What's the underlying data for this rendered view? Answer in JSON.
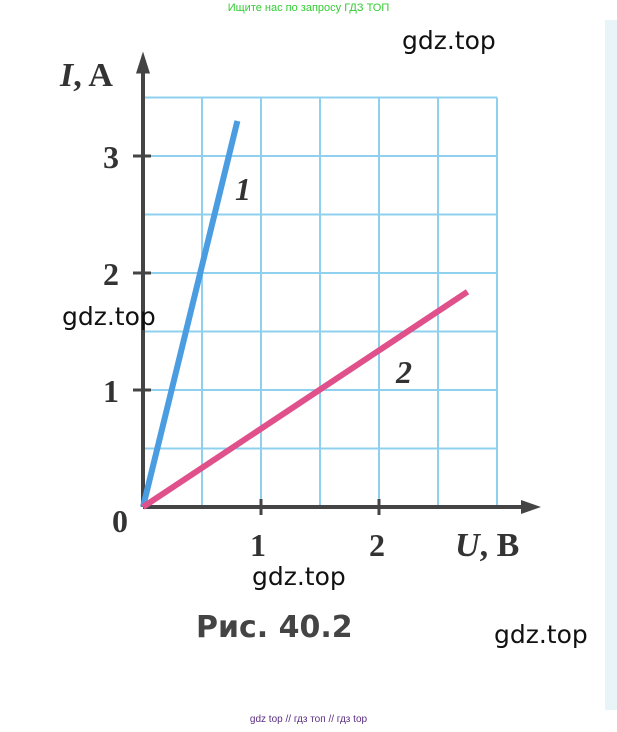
{
  "header_note": "Ищите нас по запросу ГДЗ ТОП",
  "footer_note": "gdz top  //  гдз топ  //  гдз top",
  "watermarks": [
    "gdz.top",
    "gdz.top",
    "gdz.top",
    "gdz.top"
  ],
  "chart_data": {
    "type": "line",
    "title": "",
    "caption": "Рис. 40.2",
    "xlabel": {
      "var": "U",
      "unit": ", В"
    },
    "ylabel": {
      "var": "I",
      "unit": ", A"
    },
    "origin_label": "0",
    "xlim": [
      0,
      3
    ],
    "ylim": [
      0,
      3.5
    ],
    "grid": true,
    "grid_step": 0.5,
    "x_ticks": [
      "1",
      "2"
    ],
    "y_ticks": [
      "1",
      "2",
      "3"
    ],
    "series": [
      {
        "name": "1",
        "color": "#4a9de0",
        "points": [
          [
            0,
            0
          ],
          [
            0.8,
            3.3
          ]
        ]
      },
      {
        "name": "2",
        "color": "#e0508a",
        "points": [
          [
            0,
            0
          ],
          [
            2.75,
            1.84
          ]
        ]
      }
    ],
    "colors": {
      "grid": "#8fd0ee",
      "axis": "#444444"
    }
  }
}
